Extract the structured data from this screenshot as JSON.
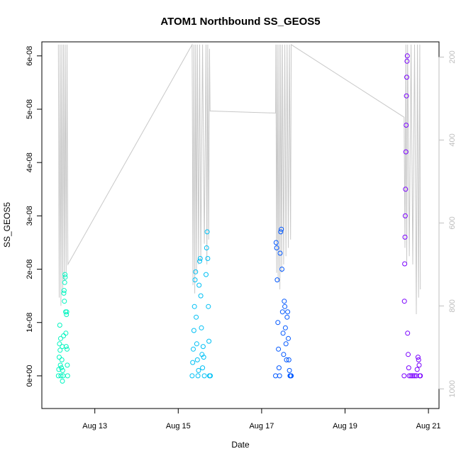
{
  "chart_data": {
    "type": "scatter",
    "title": "ATOM1 Northbound SS_GEOS5",
    "xlabel": "Date",
    "ylabel": "SS_GEOS5",
    "x_axis": {
      "type": "date",
      "range": [
        "2016-08-11T22:00",
        "2016-08-21T02:00"
      ],
      "ticks": [
        "Aug 13",
        "Aug 15",
        "Aug 17",
        "Aug 19",
        "Aug 21"
      ],
      "tick_dates": [
        "2016-08-13",
        "2016-08-15",
        "2016-08-17",
        "2016-08-19",
        "2016-08-21"
      ]
    },
    "y_axis": {
      "range": [
        -4e-09,
        6.25e-08
      ],
      "ticks": [
        0,
        1e-08,
        2e-08,
        3e-08,
        4e-08,
        5e-08,
        6e-08
      ],
      "tick_labels": [
        "0e+00",
        "1e-08",
        "2e-08",
        "3e-08",
        "4e-08",
        "5e-08",
        "6e-08"
      ]
    },
    "y2_axis": {
      "label": "",
      "reversed": true,
      "range": [
        1020,
        165
      ],
      "ticks": [
        200,
        400,
        600,
        800,
        1000
      ],
      "tick_labels": [
        "200",
        "400",
        "600",
        "800",
        "1000"
      ],
      "color": "#bebebe"
    },
    "grid": false,
    "legend": "none",
    "series": [
      {
        "color": "#00f5c0",
        "points": [
          [
            "2016-08-12T03:00",
            0
          ],
          [
            "2016-08-12T03:15",
            1.2e-09
          ],
          [
            "2016-08-12T03:30",
            3.5e-09
          ],
          [
            "2016-08-12T03:40",
            6e-09
          ],
          [
            "2016-08-12T03:50",
            9.5e-09
          ],
          [
            "2016-08-12T04:00",
            4.8e-09
          ],
          [
            "2016-08-12T04:10",
            2e-09
          ],
          [
            "2016-08-12T04:20",
            7e-09
          ],
          [
            "2016-08-12T04:30",
            0
          ],
          [
            "2016-08-12T04:45",
            1.5e-09
          ],
          [
            "2016-08-12T05:00",
            3e-09
          ],
          [
            "2016-08-12T05:15",
            5.5e-09
          ],
          [
            "2016-08-12T05:30",
            1e-09
          ],
          [
            "2016-08-12T05:45",
            0
          ],
          [
            "2016-08-12T06:00",
            7.5e-09
          ],
          [
            "2016-08-12T06:10",
            1.55e-08
          ],
          [
            "2016-08-12T06:20",
            1.6e-08
          ],
          [
            "2016-08-12T06:30",
            1.4e-08
          ],
          [
            "2016-08-12T06:40",
            1.75e-08
          ],
          [
            "2016-08-12T06:50",
            1.9e-08
          ],
          [
            "2016-08-12T07:00",
            1.85e-08
          ],
          [
            "2016-08-12T07:10",
            1.2e-08
          ],
          [
            "2016-08-12T07:20",
            8e-09
          ],
          [
            "2016-08-12T07:30",
            5.5e-09
          ],
          [
            "2016-08-12T07:40",
            1.15e-08
          ],
          [
            "2016-08-12T07:50",
            1.2e-08
          ],
          [
            "2016-08-12T08:00",
            5e-09
          ],
          [
            "2016-08-12T08:10",
            2e-09
          ],
          [
            "2016-08-12T08:20",
            0
          ],
          [
            "2016-08-12T05:20",
            -1e-09
          ]
        ]
      },
      {
        "color": "#00c0f5",
        "points": [
          [
            "2016-08-15T08:00",
            0
          ],
          [
            "2016-08-15T08:20",
            2.5e-09
          ],
          [
            "2016-08-15T08:40",
            5e-09
          ],
          [
            "2016-08-15T09:00",
            8.5e-09
          ],
          [
            "2016-08-15T09:20",
            1.3e-08
          ],
          [
            "2016-08-15T09:40",
            1.8e-08
          ],
          [
            "2016-08-15T10:00",
            1.95e-08
          ],
          [
            "2016-08-15T10:20",
            1.1e-08
          ],
          [
            "2016-08-15T10:40",
            6e-09
          ],
          [
            "2016-08-15T11:00",
            3e-09
          ],
          [
            "2016-08-15T11:20",
            0
          ],
          [
            "2016-08-15T11:40",
            1e-09
          ],
          [
            "2016-08-15T12:00",
            1.7e-08
          ],
          [
            "2016-08-15T12:20",
            2.15e-08
          ],
          [
            "2016-08-15T12:40",
            2.2e-08
          ],
          [
            "2016-08-15T13:00",
            1.5e-08
          ],
          [
            "2016-08-15T13:20",
            9e-09
          ],
          [
            "2016-08-15T13:40",
            4e-09
          ],
          [
            "2016-08-15T14:00",
            1.5e-09
          ],
          [
            "2016-08-15T14:20",
            5.5e-09
          ],
          [
            "2016-08-15T14:40",
            3.5e-09
          ],
          [
            "2016-08-15T15:00",
            0
          ],
          [
            "2016-08-15T16:00",
            1.9e-08
          ],
          [
            "2016-08-15T16:20",
            2.4e-08
          ],
          [
            "2016-08-15T16:40",
            2.7e-08
          ],
          [
            "2016-08-15T17:00",
            2.2e-08
          ],
          [
            "2016-08-15T17:20",
            1.3e-08
          ],
          [
            "2016-08-15T17:40",
            6.5e-09
          ],
          [
            "2016-08-15T18:00",
            0
          ],
          [
            "2016-08-15T18:30",
            0
          ]
        ]
      },
      {
        "color": "#0057ff",
        "points": [
          [
            "2016-08-17T08:00",
            0
          ],
          [
            "2016-08-17T08:20",
            2.5e-08
          ],
          [
            "2016-08-17T08:40",
            2.4e-08
          ],
          [
            "2016-08-17T09:00",
            1.8e-08
          ],
          [
            "2016-08-17T09:20",
            1e-08
          ],
          [
            "2016-08-17T09:40",
            5e-09
          ],
          [
            "2016-08-17T10:00",
            1.5e-09
          ],
          [
            "2016-08-17T10:20",
            0
          ],
          [
            "2016-08-17T10:40",
            2.3e-08
          ],
          [
            "2016-08-17T11:00",
            2.7e-08
          ],
          [
            "2016-08-17T11:20",
            2.75e-08
          ],
          [
            "2016-08-17T11:40",
            2e-08
          ],
          [
            "2016-08-17T12:00",
            1.2e-08
          ],
          [
            "2016-08-17T12:20",
            8e-09
          ],
          [
            "2016-08-17T12:40",
            4e-09
          ],
          [
            "2016-08-17T13:00",
            1.4e-08
          ],
          [
            "2016-08-17T13:20",
            1.3e-08
          ],
          [
            "2016-08-17T13:40",
            9e-09
          ],
          [
            "2016-08-17T14:00",
            6e-09
          ],
          [
            "2016-08-17T14:20",
            3e-09
          ],
          [
            "2016-08-17T14:40",
            1.1e-08
          ],
          [
            "2016-08-17T15:00",
            1.2e-08
          ],
          [
            "2016-08-17T15:20",
            7e-09
          ],
          [
            "2016-08-17T15:40",
            3e-09
          ],
          [
            "2016-08-17T16:00",
            1e-09
          ],
          [
            "2016-08-17T16:20",
            0
          ],
          [
            "2016-08-17T16:40",
            0
          ],
          [
            "2016-08-17T17:00",
            0
          ]
        ]
      },
      {
        "color": "#7a00ff",
        "points": [
          [
            "2016-08-20T10:00",
            0
          ],
          [
            "2016-08-20T10:10",
            1.4e-08
          ],
          [
            "2016-08-20T10:20",
            2.1e-08
          ],
          [
            "2016-08-20T10:30",
            2.6e-08
          ],
          [
            "2016-08-20T10:40",
            3e-08
          ],
          [
            "2016-08-20T10:50",
            3.5e-08
          ],
          [
            "2016-08-20T11:00",
            4.2e-08
          ],
          [
            "2016-08-20T11:10",
            4.7e-08
          ],
          [
            "2016-08-20T11:20",
            5.25e-08
          ],
          [
            "2016-08-20T11:30",
            5.6e-08
          ],
          [
            "2016-08-20T11:40",
            5.9e-08
          ],
          [
            "2016-08-20T11:50",
            6e-08
          ],
          [
            "2016-08-20T12:00",
            8e-09
          ],
          [
            "2016-08-20T12:20",
            4e-09
          ],
          [
            "2016-08-20T12:40",
            1.5e-09
          ],
          [
            "2016-08-20T13:00",
            0
          ],
          [
            "2016-08-20T14:00",
            0
          ],
          [
            "2016-08-20T15:00",
            0
          ],
          [
            "2016-08-20T16:00",
            0
          ],
          [
            "2016-08-20T17:00",
            0
          ],
          [
            "2016-08-20T17:30",
            1.2e-09
          ],
          [
            "2016-08-20T18:00",
            3.5e-09
          ],
          [
            "2016-08-20T18:20",
            3e-09
          ],
          [
            "2016-08-20T18:40",
            2e-09
          ],
          [
            "2016-08-20T19:00",
            0
          ],
          [
            "2016-08-20T19:20",
            0
          ]
        ]
      }
    ],
    "altitude_trace": {
      "axis": "y2",
      "color": "#c8c8c8",
      "points": [
        [
          "2016-08-12T03:00",
          170
        ],
        [
          "2016-08-12T03:30",
          780
        ],
        [
          "2016-08-12T04:00",
          170
        ],
        [
          "2016-08-12T04:30",
          800
        ],
        [
          "2016-08-12T05:00",
          170
        ],
        [
          "2016-08-12T05:30",
          760
        ],
        [
          "2016-08-12T06:00",
          170
        ],
        [
          "2016-08-12T06:30",
          740
        ],
        [
          "2016-08-12T07:00",
          170
        ],
        [
          "2016-08-12T07:30",
          720
        ],
        [
          "2016-08-12T08:00",
          170
        ],
        [
          "2016-08-12T08:30",
          700
        ],
        [
          "2016-08-15T08:00",
          170
        ],
        [
          "2016-08-15T08:30",
          750
        ],
        [
          "2016-08-15T09:00",
          170
        ],
        [
          "2016-08-15T09:30",
          770
        ],
        [
          "2016-08-15T10:00",
          170
        ],
        [
          "2016-08-15T10:30",
          720
        ],
        [
          "2016-08-15T11:00",
          170
        ],
        [
          "2016-08-15T11:40",
          700
        ],
        [
          "2016-08-15T12:20",
          170
        ],
        [
          "2016-08-15T13:00",
          690
        ],
        [
          "2016-08-15T14:00",
          170
        ],
        [
          "2016-08-15T15:00",
          650
        ],
        [
          "2016-08-15T16:00",
          170
        ],
        [
          "2016-08-15T16:30",
          700
        ],
        [
          "2016-08-15T17:00",
          170
        ],
        [
          "2016-08-15T17:30",
          640
        ],
        [
          "2016-08-15T18:00",
          180
        ],
        [
          "2016-08-15T18:20",
          330
        ],
        [
          "2016-08-17T08:00",
          335
        ],
        [
          "2016-08-17T08:10",
          170
        ],
        [
          "2016-08-17T08:40",
          720
        ],
        [
          "2016-08-17T09:00",
          170
        ],
        [
          "2016-08-17T09:30",
          740
        ],
        [
          "2016-08-17T10:00",
          170
        ],
        [
          "2016-08-17T10:30",
          760
        ],
        [
          "2016-08-17T11:00",
          170
        ],
        [
          "2016-08-17T11:30",
          720
        ],
        [
          "2016-08-17T12:00",
          170
        ],
        [
          "2016-08-17T12:40",
          700
        ],
        [
          "2016-08-17T13:20",
          170
        ],
        [
          "2016-08-17T14:00",
          680
        ],
        [
          "2016-08-17T14:40",
          170
        ],
        [
          "2016-08-17T15:20",
          660
        ],
        [
          "2016-08-17T16:00",
          170
        ],
        [
          "2016-08-17T16:40",
          640
        ],
        [
          "2016-08-17T17:00",
          170
        ],
        [
          "2016-08-20T10:00",
          345
        ],
        [
          "2016-08-20T10:30",
          660
        ],
        [
          "2016-08-20T11:00",
          170
        ],
        [
          "2016-08-20T11:30",
          700
        ],
        [
          "2016-08-20T12:00",
          170
        ],
        [
          "2016-08-20T13:00",
          680
        ],
        [
          "2016-08-20T14:00",
          170
        ],
        [
          "2016-08-20T15:00",
          700
        ],
        [
          "2016-08-20T16:00",
          170
        ],
        [
          "2016-08-20T17:00",
          820
        ],
        [
          "2016-08-20T17:40",
          170
        ],
        [
          "2016-08-20T18:20",
          780
        ],
        [
          "2016-08-20T19:00",
          170
        ],
        [
          "2016-08-20T19:20",
          760
        ]
      ]
    }
  }
}
